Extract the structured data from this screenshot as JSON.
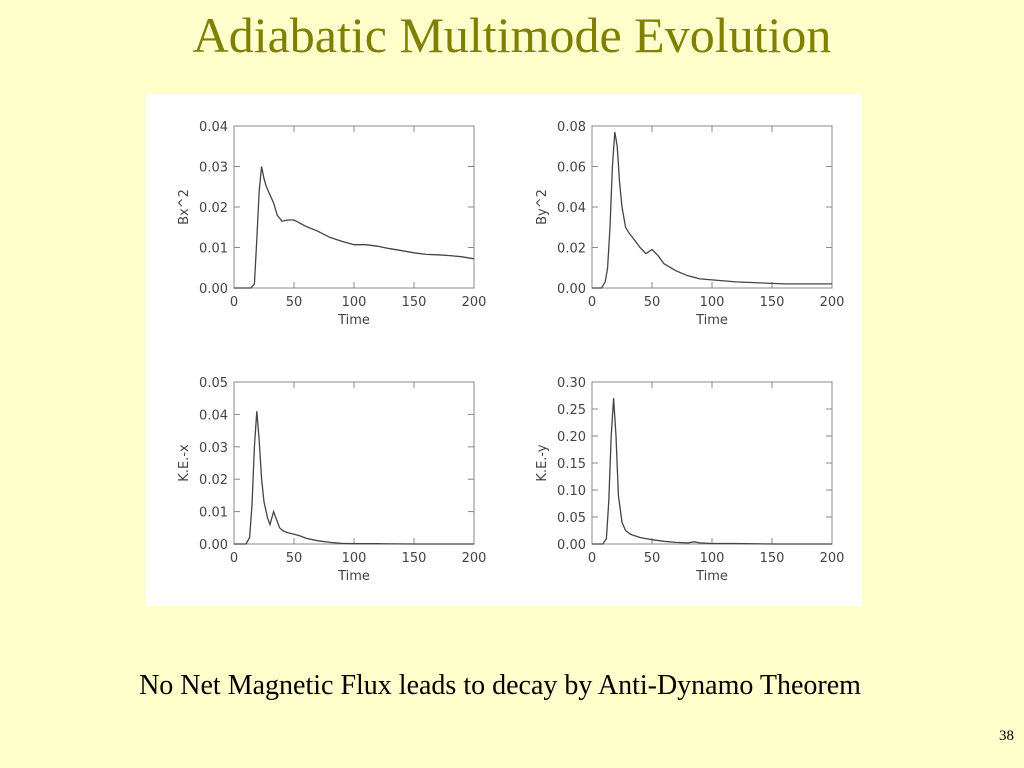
{
  "slide": {
    "title": "Adiabatic Multimode Evolution",
    "caption": "No Net Magnetic Flux leads to decay by Anti-Dynamo Theorem",
    "page_number": "38"
  },
  "colors": {
    "background": "#ffffcc",
    "title": "#7f7f00",
    "curve": "#444444",
    "axes": "#888888"
  },
  "chart_data": [
    {
      "type": "line",
      "title": "",
      "xlabel": "Time",
      "ylabel": "Bx^2",
      "xlim": [
        0,
        200
      ],
      "ylim": [
        0,
        0.04
      ],
      "xticks": [
        0,
        50,
        100,
        150,
        200
      ],
      "xtick_labels": [
        "0",
        "50",
        "100",
        "150",
        "200"
      ],
      "yticks": [
        0,
        0.01,
        0.02,
        0.03,
        0.04
      ],
      "ytick_labels": [
        "0.00",
        "0.01",
        "0.02",
        "0.03",
        "0.04"
      ],
      "grid": false,
      "series": [
        {
          "x": [
            0,
            14,
            17,
            19,
            21,
            23,
            25,
            27,
            30,
            33,
            36,
            40,
            45,
            50,
            55,
            60,
            70,
            80,
            90,
            100,
            110,
            120,
            130,
            140,
            150,
            160,
            170,
            180,
            190,
            200
          ],
          "values": [
            0.0,
            0.0,
            0.001,
            0.012,
            0.024,
            0.03,
            0.027,
            0.025,
            0.023,
            0.021,
            0.018,
            0.0165,
            0.0168,
            0.0168,
            0.016,
            0.0152,
            0.014,
            0.0125,
            0.0115,
            0.0107,
            0.0107,
            0.0103,
            0.0097,
            0.0092,
            0.0087,
            0.0083,
            0.0082,
            0.008,
            0.0077,
            0.0072
          ]
        }
      ]
    },
    {
      "type": "line",
      "title": "",
      "xlabel": "Time",
      "ylabel": "By^2",
      "xlim": [
        0,
        200
      ],
      "ylim": [
        0,
        0.08
      ],
      "xticks": [
        0,
        50,
        100,
        150,
        200
      ],
      "xtick_labels": [
        "0",
        "50",
        "100",
        "150",
        "200"
      ],
      "yticks": [
        0,
        0.02,
        0.04,
        0.06,
        0.08
      ],
      "ytick_labels": [
        "0.00",
        "0.02",
        "0.04",
        "0.06",
        "0.08"
      ],
      "grid": false,
      "series": [
        {
          "x": [
            0,
            8,
            11,
            13,
            15,
            17,
            19,
            21,
            23,
            25,
            28,
            31,
            35,
            40,
            45,
            50,
            55,
            60,
            70,
            80,
            90,
            100,
            110,
            120,
            140,
            160,
            180,
            200
          ],
          "values": [
            0.0,
            0.0,
            0.003,
            0.01,
            0.03,
            0.06,
            0.077,
            0.07,
            0.052,
            0.04,
            0.03,
            0.027,
            0.024,
            0.02,
            0.017,
            0.019,
            0.016,
            0.012,
            0.0085,
            0.006,
            0.0045,
            0.004,
            0.0035,
            0.003,
            0.0025,
            0.002,
            0.002,
            0.002
          ]
        }
      ]
    },
    {
      "type": "line",
      "title": "",
      "xlabel": "Time",
      "ylabel": "K.E.-x",
      "xlim": [
        0,
        200
      ],
      "ylim": [
        0,
        0.05
      ],
      "xticks": [
        0,
        50,
        100,
        150,
        200
      ],
      "xtick_labels": [
        "0",
        "50",
        "100",
        "150",
        "200"
      ],
      "yticks": [
        0,
        0.01,
        0.02,
        0.03,
        0.04,
        0.05
      ],
      "ytick_labels": [
        "0.00",
        "0.01",
        "0.02",
        "0.03",
        "0.04",
        "0.05"
      ],
      "grid": false,
      "series": [
        {
          "x": [
            0,
            10,
            13,
            15,
            17,
            19,
            21,
            23,
            25,
            28,
            30,
            33,
            35,
            38,
            41,
            45,
            50,
            55,
            60,
            70,
            80,
            90,
            100,
            120,
            150,
            200
          ],
          "values": [
            0.0,
            0.0,
            0.002,
            0.012,
            0.03,
            0.041,
            0.032,
            0.02,
            0.013,
            0.008,
            0.006,
            0.01,
            0.008,
            0.005,
            0.004,
            0.0035,
            0.003,
            0.0025,
            0.0018,
            0.001,
            0.0005,
            0.0002,
            0.0001,
            0.0001,
            0.0,
            0.0
          ]
        }
      ]
    },
    {
      "type": "line",
      "title": "",
      "xlabel": "Time",
      "ylabel": "K.E.-y",
      "xlim": [
        0,
        200
      ],
      "ylim": [
        0,
        0.3
      ],
      "xticks": [
        0,
        50,
        100,
        150,
        200
      ],
      "xtick_labels": [
        "0",
        "50",
        "100",
        "150",
        "200"
      ],
      "yticks": [
        0,
        0.05,
        0.1,
        0.15,
        0.2,
        0.25,
        0.3
      ],
      "ytick_labels": [
        "0.00",
        "0.05",
        "0.10",
        "0.15",
        "0.20",
        "0.25",
        "0.30"
      ],
      "grid": false,
      "series": [
        {
          "x": [
            0,
            9,
            12,
            14,
            16,
            18,
            20,
            22,
            25,
            28,
            32,
            36,
            40,
            45,
            50,
            60,
            70,
            80,
            85,
            90,
            100,
            120,
            150,
            200
          ],
          "values": [
            0.0,
            0.0,
            0.01,
            0.08,
            0.2,
            0.27,
            0.2,
            0.09,
            0.04,
            0.025,
            0.018,
            0.015,
            0.012,
            0.01,
            0.008,
            0.005,
            0.003,
            0.002,
            0.004,
            0.002,
            0.001,
            0.001,
            0.0,
            0.0
          ]
        }
      ]
    }
  ]
}
